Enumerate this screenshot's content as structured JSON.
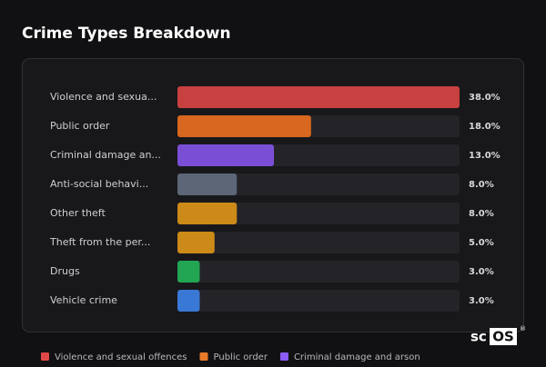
{
  "chart_data": {
    "type": "bar",
    "orientation": "horizontal",
    "title": "Crime Types Breakdown",
    "categories": [
      "Violence and sexua...",
      "Public order",
      "Criminal damage an...",
      "Anti-social behavi...",
      "Other theft",
      "Theft from the per...",
      "Drugs",
      "Vehicle crime"
    ],
    "values": [
      38,
      18,
      13,
      8,
      8,
      5,
      3,
      3
    ],
    "value_labels": [
      "38.0%",
      "18.0%",
      "13.0%",
      "8.0%",
      "8.0%",
      "5.0%",
      "3.0%",
      "3.0%"
    ],
    "colors": [
      "#c94040",
      "#d8671f",
      "#7b4fd5",
      "#5c6676",
      "#cc8a18",
      "#cc8a18",
      "#22a653",
      "#3a78d6"
    ],
    "xlim": [
      0,
      38
    ],
    "legend": [
      {
        "name": "Violence and sexual offences",
        "color": "#e04848"
      },
      {
        "name": "Public order",
        "color": "#e87a2a"
      },
      {
        "name": "Criminal damage and arson",
        "color": "#8b5cf6"
      }
    ]
  },
  "logo": {
    "prefix": "sc",
    "boxed": "OS",
    "mark": "®"
  }
}
